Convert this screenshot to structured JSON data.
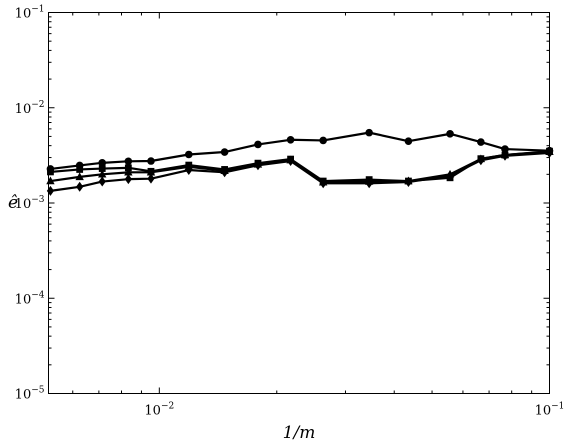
{
  "chart_data": {
    "type": "line",
    "title": "",
    "xlabel": "1/m",
    "ylabel": "ê",
    "x_scale": "log",
    "y_scale": "log",
    "xlim": [
      0.0052,
      0.1
    ],
    "ylim": [
      1e-05,
      0.1
    ],
    "grid": false,
    "legend": "none",
    "x_ticks": [
      {
        "value": 0.01,
        "base": "10",
        "exp": "−2"
      },
      {
        "value": 0.1,
        "base": "10",
        "exp": "−1"
      }
    ],
    "y_ticks": [
      {
        "value": 0.1,
        "base": "10",
        "exp": "−1"
      },
      {
        "value": 0.01,
        "base": "10",
        "exp": "−2"
      },
      {
        "value": 0.001,
        "base": "10",
        "exp": "−3"
      },
      {
        "value": 0.0001,
        "base": "10",
        "exp": "−4"
      },
      {
        "value": 1e-05,
        "base": "10",
        "exp": "−5"
      }
    ],
    "x": [
      0.00526,
      0.00625,
      0.00714,
      0.00833,
      0.00952,
      0.0119,
      0.0147,
      0.0179,
      0.0217,
      0.0263,
      0.0345,
      0.0435,
      0.0556,
      0.0667,
      0.0769,
      0.1
    ],
    "series": [
      {
        "marker": "circle",
        "color": "#000000",
        "values": [
          0.00228,
          0.00248,
          0.00264,
          0.00274,
          0.00276,
          0.00323,
          0.00343,
          0.00412,
          0.00461,
          0.00454,
          0.00548,
          0.00446,
          0.00532,
          0.00436,
          0.00368,
          0.00354
        ]
      },
      {
        "marker": "square",
        "color": "#000000",
        "values": [
          0.00212,
          0.00225,
          0.0023,
          0.00234,
          0.00215,
          0.0025,
          0.00225,
          0.00262,
          0.00289,
          0.0017,
          0.00176,
          0.0017,
          0.00184,
          0.00292,
          0.00319,
          0.0035
        ]
      },
      {
        "marker": "triangle",
        "color": "#000000",
        "values": [
          0.0017,
          0.00188,
          0.002,
          0.0021,
          0.0021,
          0.0024,
          0.00218,
          0.00254,
          0.00282,
          0.00165,
          0.00168,
          0.0017,
          0.002,
          0.0029,
          0.0032,
          0.00345
        ]
      },
      {
        "marker": "diamond",
        "color": "#000000",
        "values": [
          0.00134,
          0.00148,
          0.00168,
          0.00178,
          0.0018,
          0.00222,
          0.0021,
          0.00249,
          0.00276,
          0.00161,
          0.00161,
          0.00166,
          0.00194,
          0.00281,
          0.00313,
          0.00336
        ]
      }
    ]
  }
}
